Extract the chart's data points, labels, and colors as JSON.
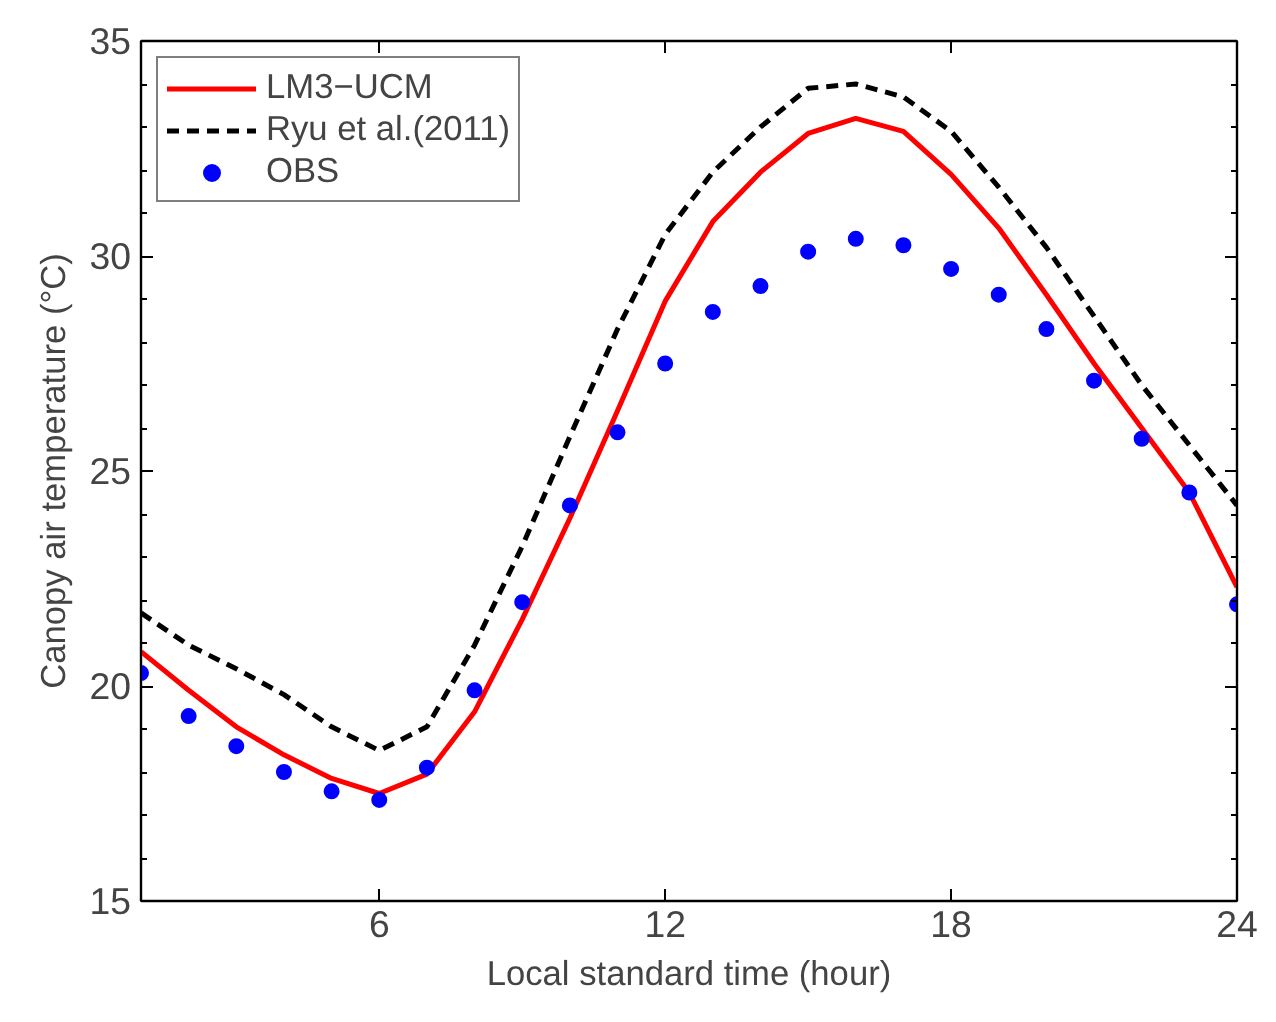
{
  "chart_data": {
    "type": "line",
    "xlabel": "Local standard time (hour)",
    "ylabel": "Canopy air temperature (°C)",
    "x": [
      1,
      2,
      3,
      4,
      5,
      6,
      7,
      8,
      9,
      10,
      11,
      12,
      13,
      14,
      15,
      16,
      17,
      18,
      19,
      20,
      21,
      22,
      23,
      24
    ],
    "xlim": [
      1,
      24
    ],
    "xticks": [
      6,
      12,
      18,
      24
    ],
    "ylim": [
      15,
      35
    ],
    "yticks": [
      15,
      20,
      25,
      30,
      35
    ],
    "grid": false,
    "legend": "top left",
    "series": [
      {
        "name": "LM3−UCM",
        "color": "#ff0000",
        "line_style": "solid",
        "values": [
          20.8,
          19.9,
          19.05,
          18.4,
          17.85,
          17.5,
          17.95,
          19.4,
          21.55,
          23.9,
          26.4,
          28.95,
          30.8,
          31.95,
          32.85,
          33.2,
          32.9,
          31.9,
          30.65,
          29.1,
          27.5,
          26.0,
          24.5,
          22.3
        ]
      },
      {
        "name": "Ryu et al.(2011)",
        "color": "#000000",
        "line_style": "dashed",
        "values": [
          21.7,
          20.95,
          20.4,
          19.8,
          19.05,
          18.5,
          19.05,
          20.95,
          23.25,
          25.8,
          28.3,
          30.5,
          31.95,
          33.0,
          33.9,
          34.0,
          33.7,
          32.9,
          31.6,
          30.2,
          28.6,
          27.0,
          25.6,
          24.2
        ]
      },
      {
        "name": "OBS",
        "color": "#0000ff",
        "type": "scatter",
        "marker": "circle",
        "values": [
          20.3,
          19.3,
          18.6,
          18.0,
          17.55,
          17.35,
          18.1,
          19.9,
          21.95,
          24.2,
          25.9,
          27.5,
          28.7,
          29.3,
          30.1,
          30.4,
          30.25,
          29.7,
          29.1,
          28.3,
          27.1,
          25.75,
          24.5,
          21.9
        ]
      }
    ]
  }
}
